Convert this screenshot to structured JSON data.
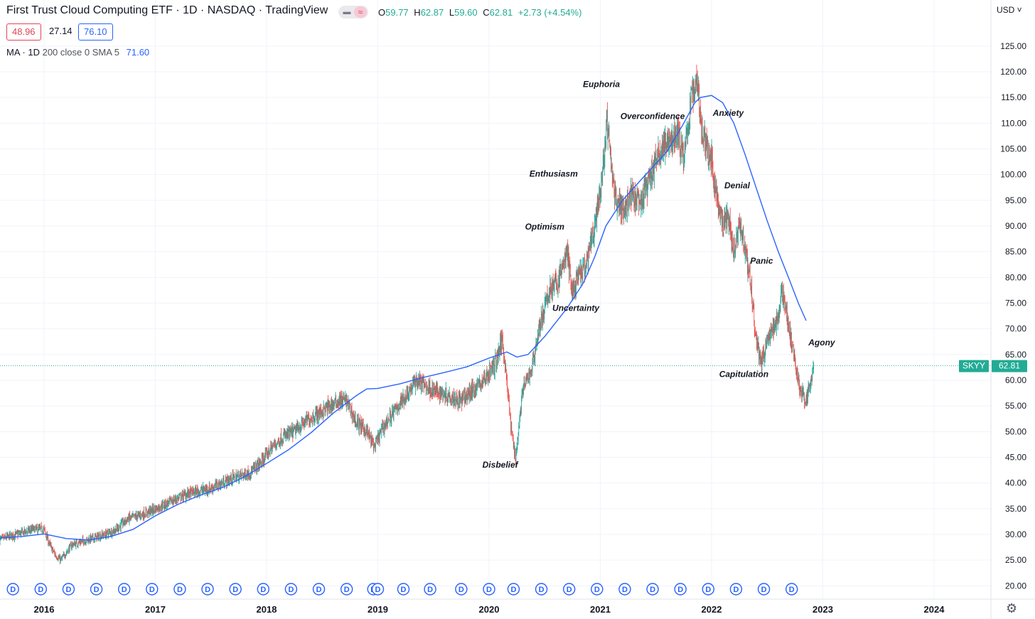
{
  "header": {
    "title": "First Trust Cloud Computing ETF · 1D · NASDAQ · TradingView",
    "mode_icons": [
      "minus-icon",
      "approx-icon"
    ],
    "ohlc": [
      {
        "key": "O",
        "value": "59.77"
      },
      {
        "key": "H",
        "value": "62.87"
      },
      {
        "key": "L",
        "value": "59.60"
      },
      {
        "key": "C",
        "value": "62.81"
      }
    ],
    "change": "+2.73 (+4.54%)",
    "boxes": {
      "red": "48.96",
      "mid": "27.14",
      "blue": "76.10"
    },
    "indicator": {
      "name": "MA · 1D",
      "params": "200 close 0 SMA 5",
      "value": "71.60"
    }
  },
  "axis": {
    "currency": "USD"
  },
  "price_label": {
    "symbol": "SKYY",
    "value": "62.81"
  },
  "colors": {
    "up": "#26a69a",
    "down": "#ef5350",
    "ma": "#2962ff",
    "price_line": "#22ab94",
    "dividend": "#2962ff"
  },
  "chart_data": {
    "type": "candlestick",
    "x_range": [
      2015.6,
      2024.5
    ],
    "y_range": [
      17.5,
      128.5
    ],
    "y_scale": "linear",
    "grid": true,
    "x_ticks": [
      "2016",
      "2017",
      "2018",
      "2019",
      "2020",
      "2021",
      "2022",
      "2023",
      "2024"
    ],
    "y_ticks": [
      "20.00",
      "25.00",
      "30.00",
      "35.00",
      "40.00",
      "45.00",
      "50.00",
      "55.00",
      "60.00",
      "65.00",
      "70.00",
      "75.00",
      "80.00",
      "85.00",
      "90.00",
      "95.00",
      "100.00",
      "105.00",
      "110.00",
      "115.00",
      "120.00",
      "125.00"
    ],
    "last_price": 62.81,
    "series": [
      {
        "name": "SKYY",
        "type": "candlestick",
        "close_path": [
          [
            2015.6,
            29
          ],
          [
            2015.75,
            30
          ],
          [
            2015.9,
            31
          ],
          [
            2016.0,
            31
          ],
          [
            2016.05,
            28
          ],
          [
            2016.1,
            26
          ],
          [
            2016.15,
            25
          ],
          [
            2016.25,
            28
          ],
          [
            2016.4,
            29
          ],
          [
            2016.55,
            30
          ],
          [
            2016.65,
            31
          ],
          [
            2016.75,
            33
          ],
          [
            2016.9,
            34
          ],
          [
            2017.0,
            35
          ],
          [
            2017.1,
            36
          ],
          [
            2017.3,
            38
          ],
          [
            2017.5,
            39
          ],
          [
            2017.7,
            41
          ],
          [
            2017.85,
            42
          ],
          [
            2017.95,
            44
          ],
          [
            2018.05,
            47
          ],
          [
            2018.15,
            49
          ],
          [
            2018.25,
            50
          ],
          [
            2018.35,
            52
          ],
          [
            2018.5,
            54
          ],
          [
            2018.65,
            56
          ],
          [
            2018.72,
            56
          ],
          [
            2018.8,
            52
          ],
          [
            2018.9,
            50
          ],
          [
            2018.97,
            47
          ],
          [
            2019.05,
            51
          ],
          [
            2019.15,
            54
          ],
          [
            2019.25,
            57
          ],
          [
            2019.35,
            60
          ],
          [
            2019.5,
            58
          ],
          [
            2019.65,
            57
          ],
          [
            2019.75,
            56
          ],
          [
            2019.85,
            58
          ],
          [
            2019.95,
            60
          ],
          [
            2020.05,
            63
          ],
          [
            2020.12,
            68
          ],
          [
            2020.16,
            60
          ],
          [
            2020.2,
            50
          ],
          [
            2020.24,
            45
          ],
          [
            2020.3,
            58
          ],
          [
            2020.38,
            62
          ],
          [
            2020.45,
            70
          ],
          [
            2020.55,
            78
          ],
          [
            2020.62,
            79
          ],
          [
            2020.7,
            85
          ],
          [
            2020.75,
            77
          ],
          [
            2020.8,
            80
          ],
          [
            2020.87,
            82
          ],
          [
            2020.93,
            88
          ],
          [
            2021.0,
            96
          ],
          [
            2021.06,
            110
          ],
          [
            2021.12,
            97
          ],
          [
            2021.2,
            93
          ],
          [
            2021.28,
            96
          ],
          [
            2021.36,
            94
          ],
          [
            2021.44,
            99
          ],
          [
            2021.52,
            104
          ],
          [
            2021.6,
            106
          ],
          [
            2021.7,
            108
          ],
          [
            2021.75,
            103
          ],
          [
            2021.82,
            115
          ],
          [
            2021.87,
            119
          ],
          [
            2021.9,
            111
          ],
          [
            2021.95,
            105
          ],
          [
            2022.0,
            103
          ],
          [
            2022.05,
            95
          ],
          [
            2022.1,
            90
          ],
          [
            2022.15,
            92
          ],
          [
            2022.2,
            85
          ],
          [
            2022.25,
            91
          ],
          [
            2022.3,
            86
          ],
          [
            2022.35,
            79
          ],
          [
            2022.4,
            68
          ],
          [
            2022.45,
            63
          ],
          [
            2022.5,
            68
          ],
          [
            2022.55,
            70
          ],
          [
            2022.6,
            72
          ],
          [
            2022.63,
            78
          ],
          [
            2022.7,
            70
          ],
          [
            2022.75,
            63
          ],
          [
            2022.8,
            58
          ],
          [
            2022.85,
            56
          ],
          [
            2022.92,
            62.81
          ]
        ]
      },
      {
        "name": "MA · 1D 200 close 0 SMA 5",
        "type": "line",
        "points": [
          [
            2015.6,
            29.3
          ],
          [
            2015.8,
            29.6
          ],
          [
            2016.0,
            30.1
          ],
          [
            2016.2,
            29.2
          ],
          [
            2016.4,
            28.9
          ],
          [
            2016.6,
            29.6
          ],
          [
            2016.8,
            31
          ],
          [
            2017.0,
            33.6
          ],
          [
            2017.2,
            35.8
          ],
          [
            2017.4,
            37.6
          ],
          [
            2017.6,
            39.1
          ],
          [
            2017.8,
            41.2
          ],
          [
            2018.0,
            43.8
          ],
          [
            2018.2,
            46.5
          ],
          [
            2018.4,
            49.8
          ],
          [
            2018.6,
            53.6
          ],
          [
            2018.8,
            56.9
          ],
          [
            2018.9,
            58.3
          ],
          [
            2019.0,
            58.4
          ],
          [
            2019.2,
            59.3
          ],
          [
            2019.4,
            60.5
          ],
          [
            2019.6,
            61.5
          ],
          [
            2019.8,
            62.6
          ],
          [
            2020.0,
            64.3
          ],
          [
            2020.16,
            65.5
          ],
          [
            2020.25,
            64.5
          ],
          [
            2020.35,
            65
          ],
          [
            2020.5,
            68.5
          ],
          [
            2020.7,
            74
          ],
          [
            2020.85,
            79
          ],
          [
            2020.95,
            84
          ],
          [
            2021.05,
            90
          ],
          [
            2021.2,
            95
          ],
          [
            2021.4,
            99.8
          ],
          [
            2021.6,
            104.5
          ],
          [
            2021.75,
            110
          ],
          [
            2021.85,
            114
          ],
          [
            2021.9,
            115
          ],
          [
            2022.0,
            115.4
          ],
          [
            2022.1,
            114
          ],
          [
            2022.2,
            110
          ],
          [
            2022.3,
            104
          ],
          [
            2022.4,
            97.5
          ],
          [
            2022.5,
            91
          ],
          [
            2022.6,
            85
          ],
          [
            2022.7,
            79.5
          ],
          [
            2022.78,
            75
          ],
          [
            2022.85,
            71.6
          ]
        ]
      }
    ],
    "annotations": [
      {
        "text": "Disbelief",
        "x": 2020.1,
        "y": 43
      },
      {
        "text": "Uncertainty",
        "x": 2020.78,
        "y": 73.5
      },
      {
        "text": "Optimism",
        "x": 2020.5,
        "y": 89.3
      },
      {
        "text": "Enthusiasm",
        "x": 2020.58,
        "y": 99.6
      },
      {
        "text": "Euphoria",
        "x": 2021.01,
        "y": 117
      },
      {
        "text": "Overconfidence",
        "x": 2021.47,
        "y": 110.8
      },
      {
        "text": "Anxiety",
        "x": 2022.15,
        "y": 111.4
      },
      {
        "text": "Denial",
        "x": 2022.23,
        "y": 97.3
      },
      {
        "text": "Panic",
        "x": 2022.45,
        "y": 82.7
      },
      {
        "text": "Agony",
        "x": 2022.99,
        "y": 66.8
      },
      {
        "text": "Capitulation",
        "x": 2022.29,
        "y": 60.6
      }
    ],
    "dividend_markers": {
      "label": "D",
      "x": [
        2015.72,
        2015.97,
        2016.22,
        2016.47,
        2016.72,
        2016.97,
        2017.22,
        2017.47,
        2017.72,
        2017.97,
        2018.22,
        2018.47,
        2018.72,
        2018.96,
        2019.0,
        2019.23,
        2019.47,
        2019.75,
        2020.0,
        2020.22,
        2020.47,
        2020.72,
        2020.97,
        2021.22,
        2021.47,
        2021.72,
        2021.97,
        2022.22,
        2022.47,
        2022.72
      ]
    }
  }
}
